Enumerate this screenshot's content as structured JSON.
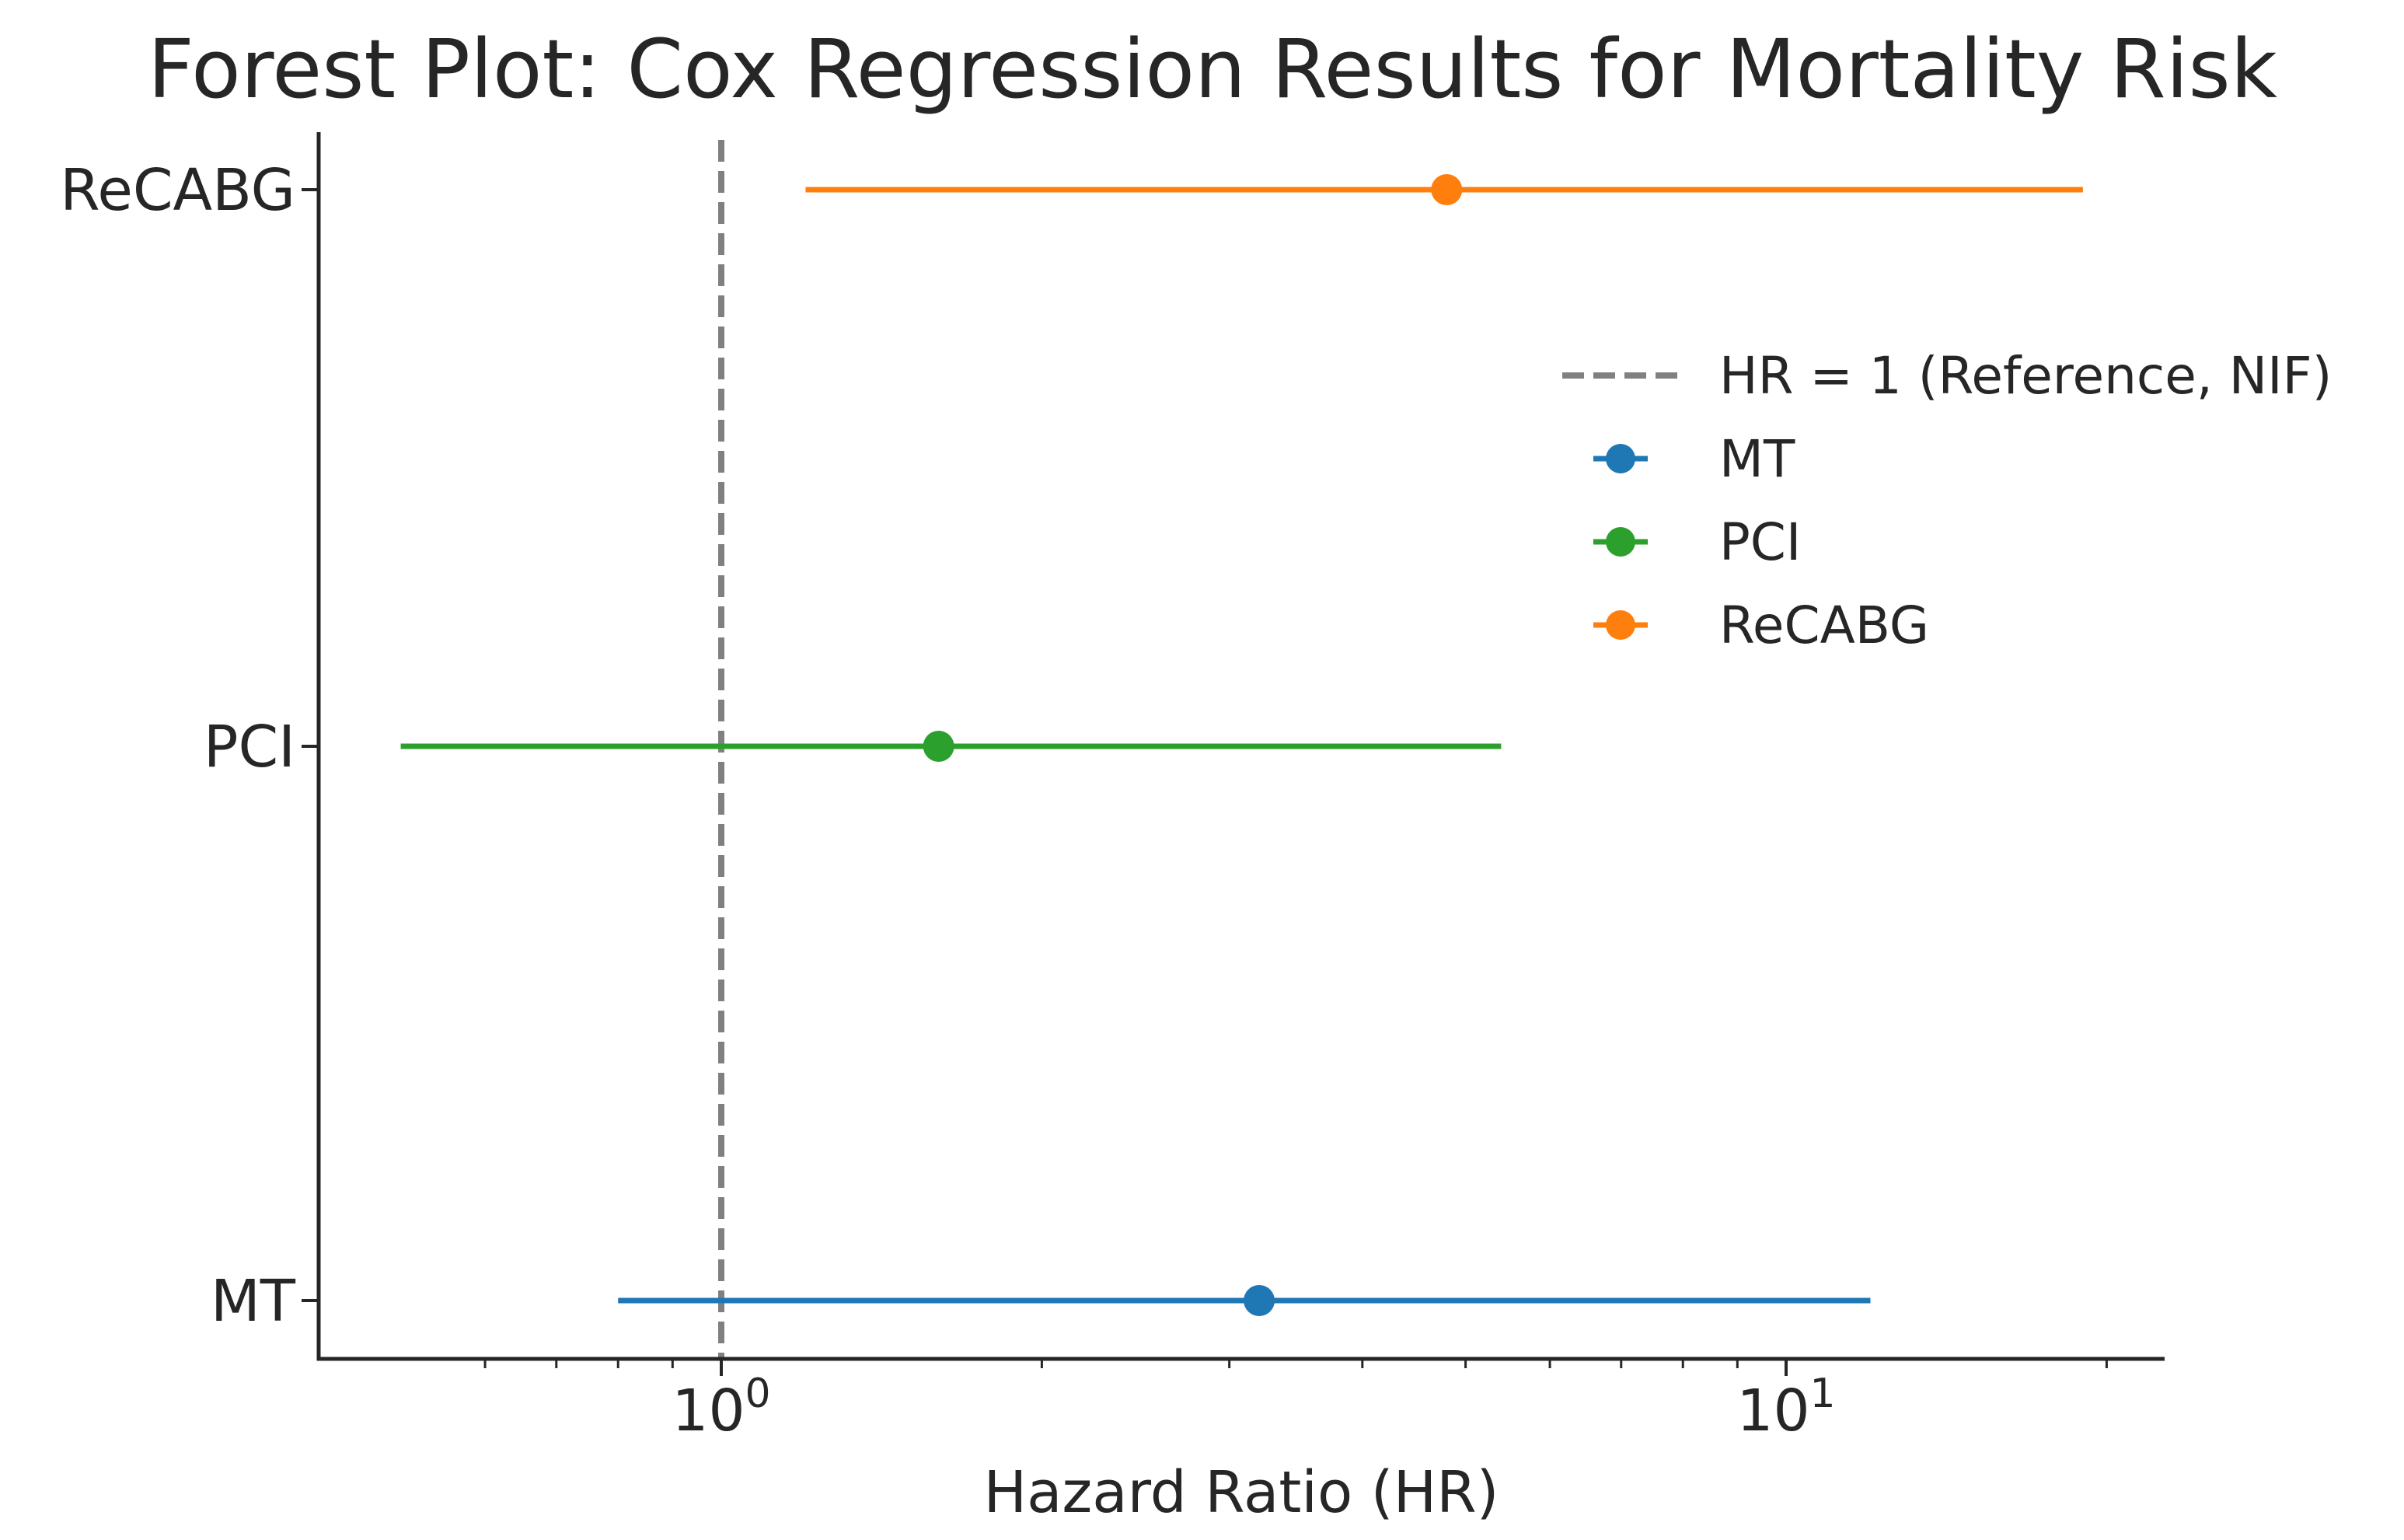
{
  "chart_data": {
    "type": "forest",
    "title": "Forest Plot: Cox Regression Results for Mortality Risk",
    "xlabel": "Hazard Ratio (HR)",
    "ylabel": "",
    "x_scale": "log",
    "xlim": [
      0.5,
      21
    ],
    "x_major_ticks": [
      {
        "value": 1,
        "base": "10",
        "exp": "0"
      },
      {
        "value": 10,
        "base": "10",
        "exp": "1"
      }
    ],
    "x_minor_ticks": [
      0.6,
      0.7,
      0.8,
      0.9,
      2,
      3,
      4,
      5,
      6,
      7,
      8,
      9,
      20
    ],
    "categories": [
      "MT",
      "PCI",
      "ReCABG"
    ],
    "series": [
      {
        "name": "MT",
        "hr": 3.2,
        "ci_low": 0.8,
        "ci_high": 12.0,
        "color": "#1f77b4"
      },
      {
        "name": "PCI",
        "hr": 1.6,
        "ci_low": 0.5,
        "ci_high": 5.4,
        "color": "#2ca02c"
      },
      {
        "name": "ReCABG",
        "hr": 4.8,
        "ci_low": 1.2,
        "ci_high": 19.0,
        "color": "#ff7f0e"
      }
    ],
    "reference_line": {
      "value": 1,
      "label": "HR = 1 (Reference, NIF)",
      "color": "#808080",
      "style": "dashed"
    },
    "legend": {
      "placement": "upper-right",
      "entries": [
        "HR = 1 (Reference, NIF)",
        "MT",
        "PCI",
        "ReCABG"
      ]
    },
    "grid": false
  }
}
